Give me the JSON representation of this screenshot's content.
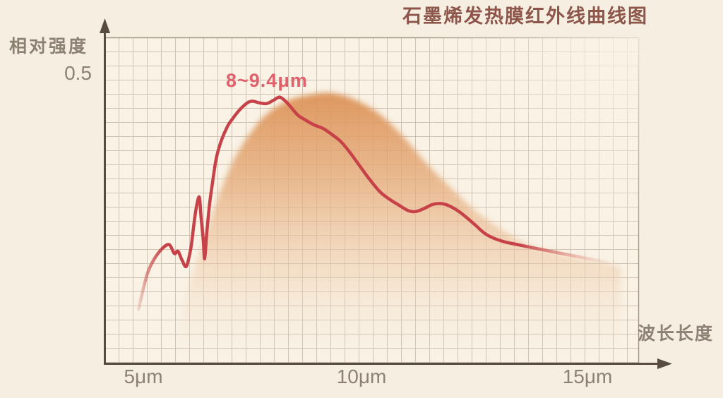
{
  "colors": {
    "background": "#f5eee1",
    "plot_background": "#fbf5e9",
    "grid_line": "#c6baab",
    "axis_line": "#584b3f",
    "curve_red": "#c64248",
    "area_orange_top": "#dd9256",
    "title_text": "#8e564b",
    "label_text": "#8c8173",
    "annotation_text": "#e0616c"
  },
  "chart_data": {
    "type": "line",
    "title": "石墨烯发热膜红外线曲线图",
    "ylabel": "相对强度",
    "xlabel": "波长长度",
    "x_unit": "μm",
    "y_axis_tick": "0.5",
    "x_ticks": [
      "5μm",
      "10μm",
      "15μm"
    ],
    "x_tick_values": [
      5,
      10,
      15
    ],
    "xlim": [
      4.1,
      16.9
    ],
    "ylim": [
      0,
      0.56
    ],
    "grid": true,
    "legend_position": "none",
    "annotation": {
      "text": "8~9.4μm",
      "x_range": [
        8,
        9.4
      ]
    },
    "series": [
      {
        "name": "infrared-intensity-curve",
        "kind": "line",
        "color": "#c64248",
        "points": [
          [
            4.89,
            0.093
          ],
          [
            4.98,
            0.123
          ],
          [
            5.08,
            0.152
          ],
          [
            5.17,
            0.169
          ],
          [
            5.3,
            0.186
          ],
          [
            5.46,
            0.2
          ],
          [
            5.59,
            0.204
          ],
          [
            5.7,
            0.189
          ],
          [
            5.78,
            0.193
          ],
          [
            5.87,
            0.178
          ],
          [
            5.97,
            0.167
          ],
          [
            6.07,
            0.198
          ],
          [
            6.13,
            0.234
          ],
          [
            6.19,
            0.267
          ],
          [
            6.26,
            0.286
          ],
          [
            6.3,
            0.251
          ],
          [
            6.35,
            0.212
          ],
          [
            6.38,
            0.18
          ],
          [
            6.43,
            0.225
          ],
          [
            6.49,
            0.273
          ],
          [
            6.56,
            0.312
          ],
          [
            6.64,
            0.352
          ],
          [
            6.75,
            0.382
          ],
          [
            6.89,
            0.407
          ],
          [
            7.02,
            0.422
          ],
          [
            7.18,
            0.437
          ],
          [
            7.34,
            0.448
          ],
          [
            7.46,
            0.451
          ],
          [
            7.62,
            0.448
          ],
          [
            7.78,
            0.447
          ],
          [
            7.94,
            0.453
          ],
          [
            8.07,
            0.458
          ],
          [
            8.2,
            0.451
          ],
          [
            8.32,
            0.441
          ],
          [
            8.48,
            0.427
          ],
          [
            8.64,
            0.419
          ],
          [
            8.85,
            0.41
          ],
          [
            9.05,
            0.404
          ],
          [
            9.24,
            0.394
          ],
          [
            9.44,
            0.382
          ],
          [
            9.64,
            0.364
          ],
          [
            9.85,
            0.342
          ],
          [
            10.07,
            0.319
          ],
          [
            10.33,
            0.295
          ],
          [
            10.55,
            0.282
          ],
          [
            10.76,
            0.272
          ],
          [
            10.96,
            0.263
          ],
          [
            11.12,
            0.261
          ],
          [
            11.31,
            0.266
          ],
          [
            11.5,
            0.273
          ],
          [
            11.66,
            0.275
          ],
          [
            11.82,
            0.273
          ],
          [
            12.03,
            0.265
          ],
          [
            12.23,
            0.254
          ],
          [
            12.46,
            0.239
          ],
          [
            12.68,
            0.224
          ],
          [
            12.9,
            0.215
          ],
          [
            13.14,
            0.209
          ],
          [
            13.38,
            0.205
          ],
          [
            13.7,
            0.2
          ],
          [
            14.09,
            0.194
          ],
          [
            14.49,
            0.188
          ],
          [
            14.97,
            0.181
          ],
          [
            15.45,
            0.174
          ]
        ]
      },
      {
        "name": "smooth-emission-envelope",
        "kind": "area",
        "color": "#dd9256",
        "points": [
          [
            5.78,
            0.055
          ],
          [
            5.94,
            0.103
          ],
          [
            6.14,
            0.161
          ],
          [
            6.42,
            0.225
          ],
          [
            6.73,
            0.295
          ],
          [
            7.05,
            0.352
          ],
          [
            7.42,
            0.397
          ],
          [
            7.81,
            0.431
          ],
          [
            8.29,
            0.453
          ],
          [
            8.77,
            0.462
          ],
          [
            9.21,
            0.465
          ],
          [
            9.72,
            0.455
          ],
          [
            10.28,
            0.431
          ],
          [
            10.83,
            0.392
          ],
          [
            11.39,
            0.343
          ],
          [
            11.95,
            0.3
          ],
          [
            12.5,
            0.261
          ],
          [
            13.06,
            0.231
          ],
          [
            13.7,
            0.204
          ],
          [
            14.49,
            0.186
          ],
          [
            15.29,
            0.174
          ],
          [
            15.76,
            0.166
          ]
        ]
      }
    ]
  }
}
